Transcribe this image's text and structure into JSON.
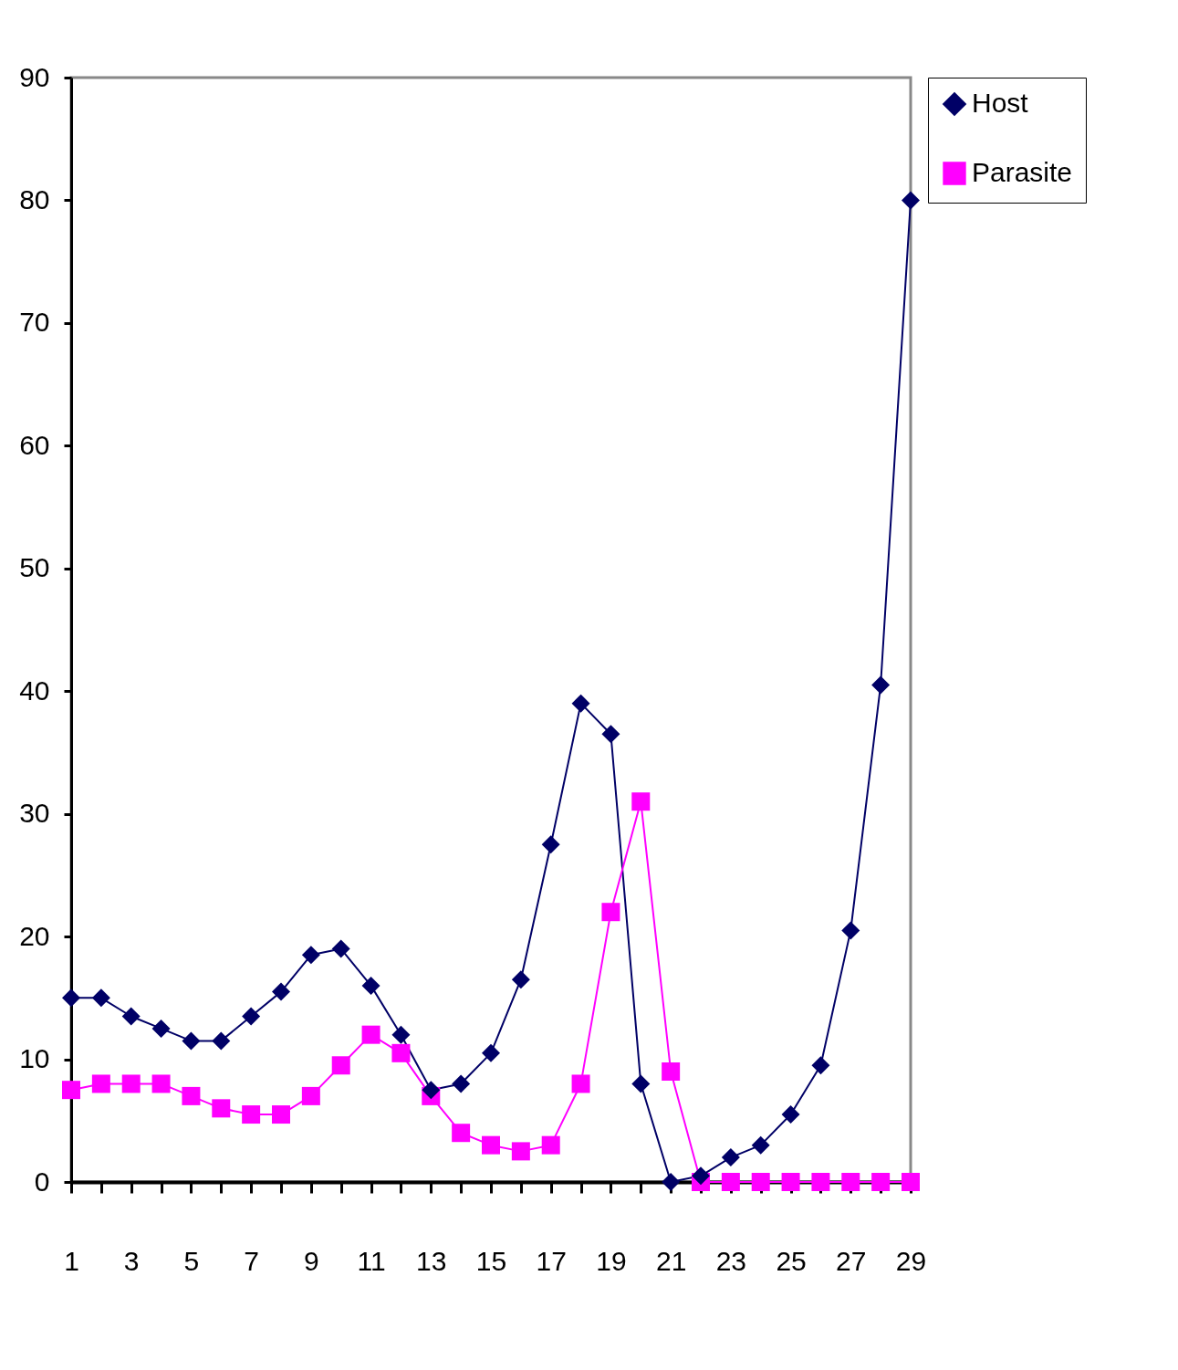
{
  "chart_data": {
    "type": "line",
    "x": [
      1,
      2,
      3,
      4,
      5,
      6,
      7,
      8,
      9,
      10,
      11,
      12,
      13,
      14,
      15,
      16,
      17,
      18,
      19,
      20,
      21,
      22,
      23,
      24,
      25,
      26,
      27,
      28,
      29
    ],
    "series": [
      {
        "name": "Host",
        "color": "#000066",
        "marker": "diamond",
        "values": [
          15,
          15,
          13.5,
          12.5,
          11.5,
          11.5,
          13.5,
          15.5,
          18.5,
          19,
          16,
          12,
          7.5,
          8,
          10.5,
          16.5,
          27.5,
          39,
          36.5,
          8,
          0,
          0.5,
          2,
          3,
          5.5,
          9.5,
          20.5,
          40.5,
          80
        ]
      },
      {
        "name": "Parasite",
        "color": "#ff00ff",
        "marker": "square",
        "values": [
          7.5,
          8,
          8,
          8,
          7,
          6,
          5.5,
          5.5,
          7,
          9.5,
          12,
          10.5,
          7,
          4,
          3,
          2.5,
          3,
          8,
          22,
          31,
          9,
          0,
          0,
          0,
          0,
          0,
          0,
          0,
          0
        ]
      }
    ],
    "xlim": [
      1,
      29
    ],
    "xticks": [
      1,
      {
        "value": 2,
        "label": null
      },
      3,
      {
        "value": 4,
        "label": null
      },
      5,
      {
        "value": 6,
        "label": null
      },
      7,
      {
        "value": 8,
        "label": null
      },
      9,
      {
        "value": 10,
        "label": null
      },
      11,
      {
        "value": 12,
        "label": null
      },
      13,
      {
        "value": 14,
        "label": null
      },
      15,
      {
        "value": 16,
        "label": null
      },
      17,
      {
        "value": 18,
        "label": null
      },
      19,
      {
        "value": 20,
        "label": null
      },
      21,
      {
        "value": 22,
        "label": null
      },
      23,
      {
        "value": 24,
        "label": null
      },
      25,
      {
        "value": 26,
        "label": null
      },
      27,
      {
        "value": 28,
        "label": null
      },
      29
    ],
    "ylim": [
      0,
      90
    ],
    "yticks": [
      0,
      10,
      20,
      30,
      40,
      50,
      60,
      70,
      80,
      90
    ],
    "grid": false,
    "legend": "right",
    "line_style": "solid"
  }
}
